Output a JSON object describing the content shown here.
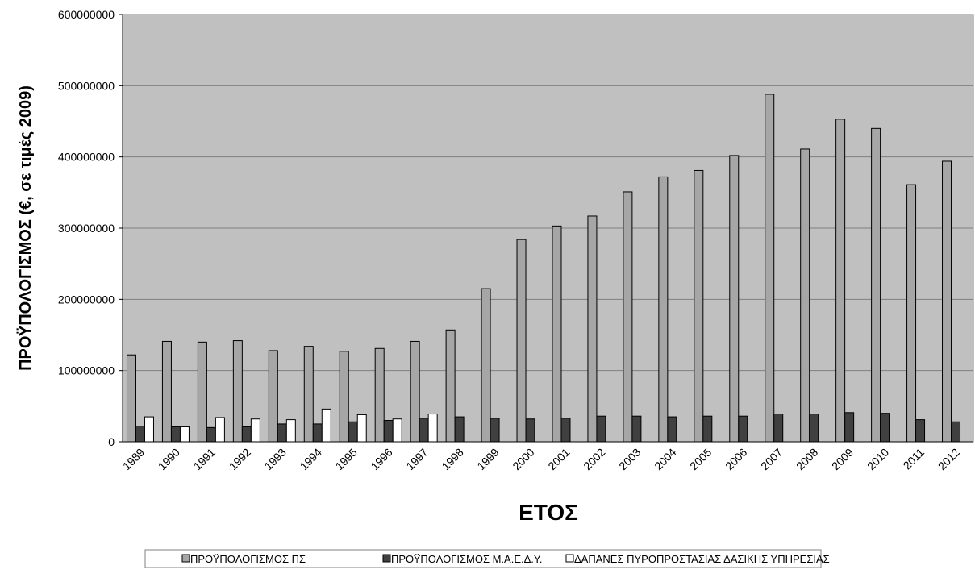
{
  "chart_data": {
    "type": "bar",
    "x_label": "ΕΤΟΣ",
    "y_label": "ΠΡΟΫΠΟΛΟΓΙΣΜΟΣ (€, σε τιμές 2009)",
    "categories": [
      "1989",
      "1990",
      "1991",
      "1992",
      "1993",
      "1994",
      "1995",
      "1996",
      "1997",
      "1998",
      "1999",
      "2000",
      "2001",
      "2002",
      "2003",
      "2004",
      "2005",
      "2006",
      "2007",
      "2008",
      "2009",
      "2010",
      "2011",
      "2012"
    ],
    "series": [
      {
        "name": "ΠΡΟΫΠΟΛΟΓΙΣΜΟΣ ΠΣ",
        "color": "#a6a6a6",
        "values": [
          122000000,
          141000000,
          140000000,
          142000000,
          128000000,
          134000000,
          127000000,
          131000000,
          141000000,
          157000000,
          215000000,
          284000000,
          303000000,
          317000000,
          351000000,
          372000000,
          381000000,
          402000000,
          488000000,
          411000000,
          453000000,
          440000000,
          361000000,
          394000000
        ]
      },
      {
        "name": "ΠΡΟΫΠΟΛΟΓΙΣΜΟΣ Μ.Α.Ε.Δ.Υ.",
        "color": "#404040",
        "values": [
          22000000,
          21000000,
          20000000,
          21000000,
          25000000,
          25000000,
          28000000,
          30000000,
          33000000,
          35000000,
          33000000,
          32000000,
          33000000,
          36000000,
          36000000,
          35000000,
          36000000,
          36000000,
          39000000,
          39000000,
          41000000,
          40000000,
          31000000,
          28000000
        ]
      },
      {
        "name": "ΔΑΠΑΝΕΣ ΠΥΡΟΠΡΟΣΤΑΣΙΑΣ ΔΑΣΙΚΗΣ ΥΠΗΡΕΣΙΑΣ",
        "color": "#ffffff",
        "values": [
          35000000,
          21000000,
          34000000,
          32000000,
          31000000,
          46000000,
          38000000,
          32000000,
          39000000,
          null,
          null,
          null,
          null,
          null,
          null,
          null,
          null,
          null,
          null,
          null,
          null,
          null,
          null,
          null
        ]
      }
    ],
    "ylim": [
      0,
      600000000
    ],
    "yticks": [
      0,
      100000000,
      200000000,
      300000000,
      400000000,
      500000000,
      600000000
    ],
    "grid": true,
    "plot_background": "#c0c0c0",
    "legend": "bottom"
  }
}
